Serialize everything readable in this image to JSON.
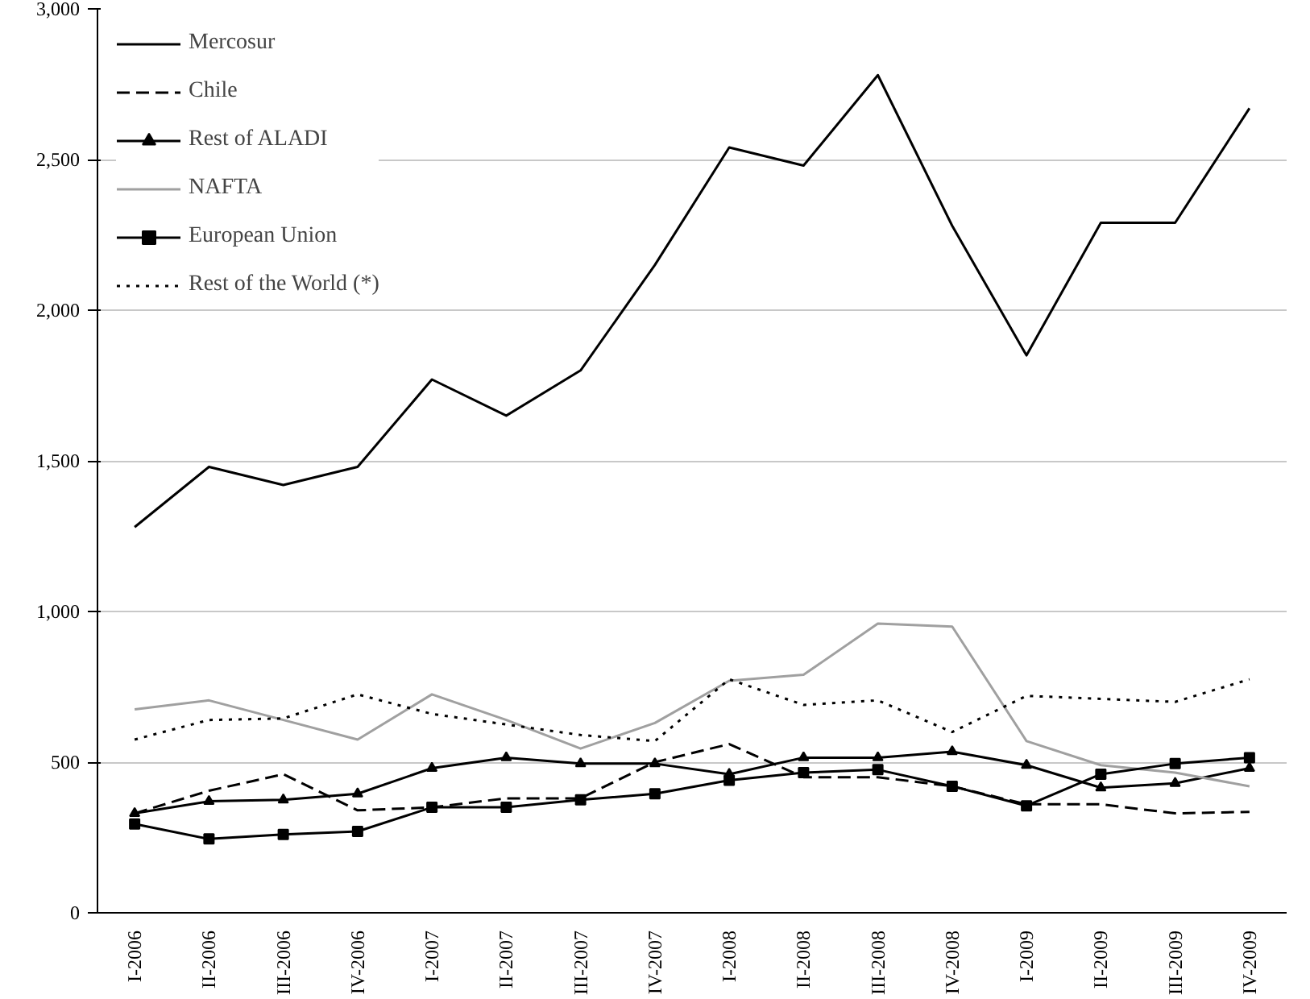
{
  "chart_data": {
    "type": "line",
    "categories": [
      "I-2006",
      "II-2006",
      "III-2006",
      "IV-2006",
      "I-2007",
      "II-2007",
      "III-2007",
      "IV-2007",
      "I-2008",
      "II-2008",
      "III-2008",
      "IV-2008",
      "I-2009",
      "II-2009",
      "III-2009",
      "IV-2009"
    ],
    "series": [
      {
        "name": "Mercosur",
        "color": "#000000",
        "line_style": "solid",
        "marker": "none",
        "values": [
          1280,
          1480,
          1420,
          1480,
          1770,
          1650,
          1800,
          2150,
          2540,
          2480,
          2780,
          2280,
          1850,
          2290,
          2290,
          2670
        ]
      },
      {
        "name": "Chile",
        "color": "#000000",
        "line_style": "dashed",
        "marker": "none",
        "values": [
          330,
          405,
          460,
          340,
          350,
          380,
          380,
          500,
          560,
          450,
          450,
          420,
          360,
          360,
          330,
          335
        ]
      },
      {
        "name": "Rest of ALADI",
        "color": "#000000",
        "line_style": "solid",
        "marker": "triangle",
        "values": [
          330,
          370,
          375,
          395,
          480,
          515,
          495,
          495,
          460,
          515,
          515,
          535,
          490,
          415,
          430,
          480
        ]
      },
      {
        "name": "NAFTA",
        "color": "#a0a0a0",
        "line_style": "solid",
        "marker": "none",
        "values": [
          675,
          705,
          640,
          575,
          725,
          640,
          545,
          630,
          770,
          790,
          960,
          950,
          570,
          490,
          465,
          420
        ]
      },
      {
        "name": "European Union",
        "color": "#000000",
        "line_style": "solid",
        "marker": "square",
        "values": [
          295,
          245,
          260,
          270,
          350,
          350,
          375,
          395,
          440,
          465,
          475,
          420,
          355,
          460,
          495,
          515
        ]
      },
      {
        "name": "Rest of the World (*)",
        "color": "#000000",
        "line_style": "dotted",
        "marker": "none",
        "values": [
          575,
          640,
          645,
          725,
          660,
          625,
          590,
          570,
          775,
          690,
          705,
          600,
          720,
          710,
          700,
          775
        ]
      }
    ],
    "ylim": [
      0,
      3000
    ],
    "yticks": [
      0,
      500,
      {
        "value": 1000,
        "label": "1,000"
      },
      {
        "value": 1500,
        "label": "1,500"
      },
      {
        "value": 2000,
        "label": "2,000"
      },
      {
        "value": 2500,
        "label": "2,500"
      },
      {
        "value": 3000,
        "label": "3,000"
      }
    ],
    "grid": "y",
    "legend": "top left"
  }
}
